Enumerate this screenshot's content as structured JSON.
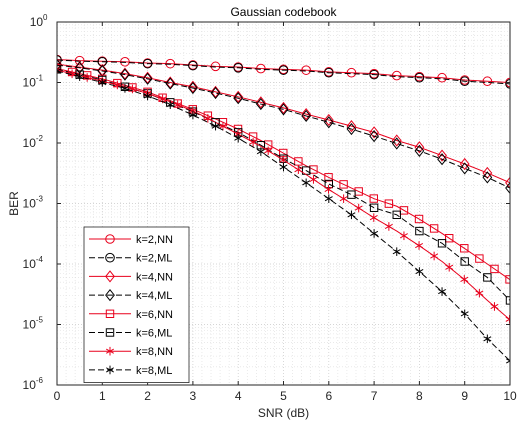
{
  "chart_data": {
    "type": "line",
    "title": "Gaussian codebook",
    "xlabel": "SNR (dB)",
    "ylabel": "BER",
    "xlim": [
      0,
      10
    ],
    "ylim": [
      1e-06,
      1
    ],
    "yscale": "log",
    "x_ticks": [
      "0",
      "1",
      "2",
      "3",
      "4",
      "5",
      "6",
      "7",
      "8",
      "9",
      "10"
    ],
    "y_ticks": [
      {
        "base": "10",
        "exp": "0",
        "value": 1
      },
      {
        "base": "10",
        "exp": "-1",
        "value": 0.1
      },
      {
        "base": "10",
        "exp": "-2",
        "value": 0.01
      },
      {
        "base": "10",
        "exp": "-3",
        "value": 0.001
      },
      {
        "base": "10",
        "exp": "-4",
        "value": 0.0001
      },
      {
        "base": "10",
        "exp": "-5",
        "value": 1e-05
      },
      {
        "base": "10",
        "exp": "-6",
        "value": 1e-06
      }
    ],
    "grid": true,
    "minor_grid": true,
    "legend_position": "bottom-left",
    "x": [
      0,
      0.5,
      1,
      1.5,
      2,
      2.5,
      3,
      3.5,
      4,
      4.5,
      5,
      5.5,
      6,
      6.5,
      7,
      7.5,
      8,
      8.5,
      9,
      9.5,
      10
    ],
    "series": [
      {
        "name": "k=2,NN",
        "color": "#e8001c",
        "dash": "solid",
        "marker": "circle",
        "marker_every": 0.5,
        "values": [
          0.24,
          0.23,
          0.225,
          0.22,
          0.21,
          0.205,
          0.195,
          0.185,
          0.18,
          0.17,
          0.165,
          0.16,
          0.15,
          0.145,
          0.14,
          0.13,
          0.125,
          0.12,
          0.11,
          0.105,
          0.1
        ]
      },
      {
        "name": "k=2,ML",
        "color": "#000000",
        "dash": "dashed",
        "marker": "circle",
        "marker_every": 1,
        "values": [
          0.235,
          0.225,
          0.22,
          0.215,
          0.205,
          0.2,
          0.19,
          0.18,
          0.175,
          0.165,
          0.16,
          0.155,
          0.145,
          0.14,
          0.135,
          0.125,
          0.12,
          0.115,
          0.105,
          0.1,
          0.095
        ]
      },
      {
        "name": "k=4,NN",
        "color": "#e8001c",
        "dash": "solid",
        "marker": "diamond",
        "marker_every": 0.5,
        "values": [
          0.2,
          0.18,
          0.16,
          0.14,
          0.12,
          0.1,
          0.085,
          0.07,
          0.058,
          0.047,
          0.038,
          0.03,
          0.024,
          0.019,
          0.015,
          0.011,
          0.0085,
          0.0062,
          0.0045,
          0.0032,
          0.0022
        ]
      },
      {
        "name": "k=4,ML",
        "color": "#000000",
        "dash": "dashed",
        "marker": "diamond",
        "marker_every": 0.5,
        "values": [
          0.195,
          0.175,
          0.155,
          0.135,
          0.115,
          0.096,
          0.081,
          0.067,
          0.055,
          0.044,
          0.036,
          0.028,
          0.022,
          0.017,
          0.013,
          0.0098,
          0.0074,
          0.0054,
          0.0038,
          0.0027,
          0.0018
        ]
      },
      {
        "name": "k=6,NN",
        "color": "#e8001c",
        "dash": "solid",
        "marker": "square",
        "marker_every": 0.333,
        "values": [
          0.17,
          0.14,
          0.115,
          0.09,
          0.07,
          0.05,
          0.036,
          0.025,
          0.017,
          0.011,
          0.0068,
          0.0042,
          0.0027,
          0.0018,
          0.0012,
          0.0009,
          0.00055,
          0.00032,
          0.00018,
          0.0001,
          5.5e-05
        ]
      },
      {
        "name": "k=6,ML",
        "color": "#000000",
        "dash": "dashed",
        "marker": "square",
        "marker_every": 0.5,
        "values": [
          0.165,
          0.135,
          0.11,
          0.085,
          0.066,
          0.047,
          0.033,
          0.022,
          0.015,
          0.0092,
          0.0055,
          0.0035,
          0.0021,
          0.0014,
          0.00085,
          0.00065,
          0.00035,
          0.00022,
          0.00011,
          6e-05,
          2.5e-05
        ]
      },
      {
        "name": "k=8,NN",
        "color": "#e8001c",
        "dash": "solid",
        "marker": "asterisk",
        "marker_every": 0.333,
        "values": [
          0.16,
          0.13,
          0.105,
          0.085,
          0.066,
          0.048,
          0.034,
          0.022,
          0.014,
          0.0088,
          0.0052,
          0.003,
          0.0017,
          0.001,
          0.00058,
          0.00035,
          0.0002,
          0.00011,
          5.5e-05,
          2.5e-05,
          1.2e-05
        ]
      },
      {
        "name": "k=8,ML",
        "color": "#000000",
        "dash": "dashed",
        "marker": "asterisk",
        "marker_every": 0.5,
        "values": [
          0.155,
          0.125,
          0.1,
          0.08,
          0.06,
          0.043,
          0.029,
          0.019,
          0.012,
          0.0072,
          0.004,
          0.0022,
          0.0012,
          0.00065,
          0.00032,
          0.00016,
          7.5e-05,
          3.5e-05,
          1.5e-05,
          5.8e-06,
          2.5e-06
        ]
      }
    ]
  }
}
